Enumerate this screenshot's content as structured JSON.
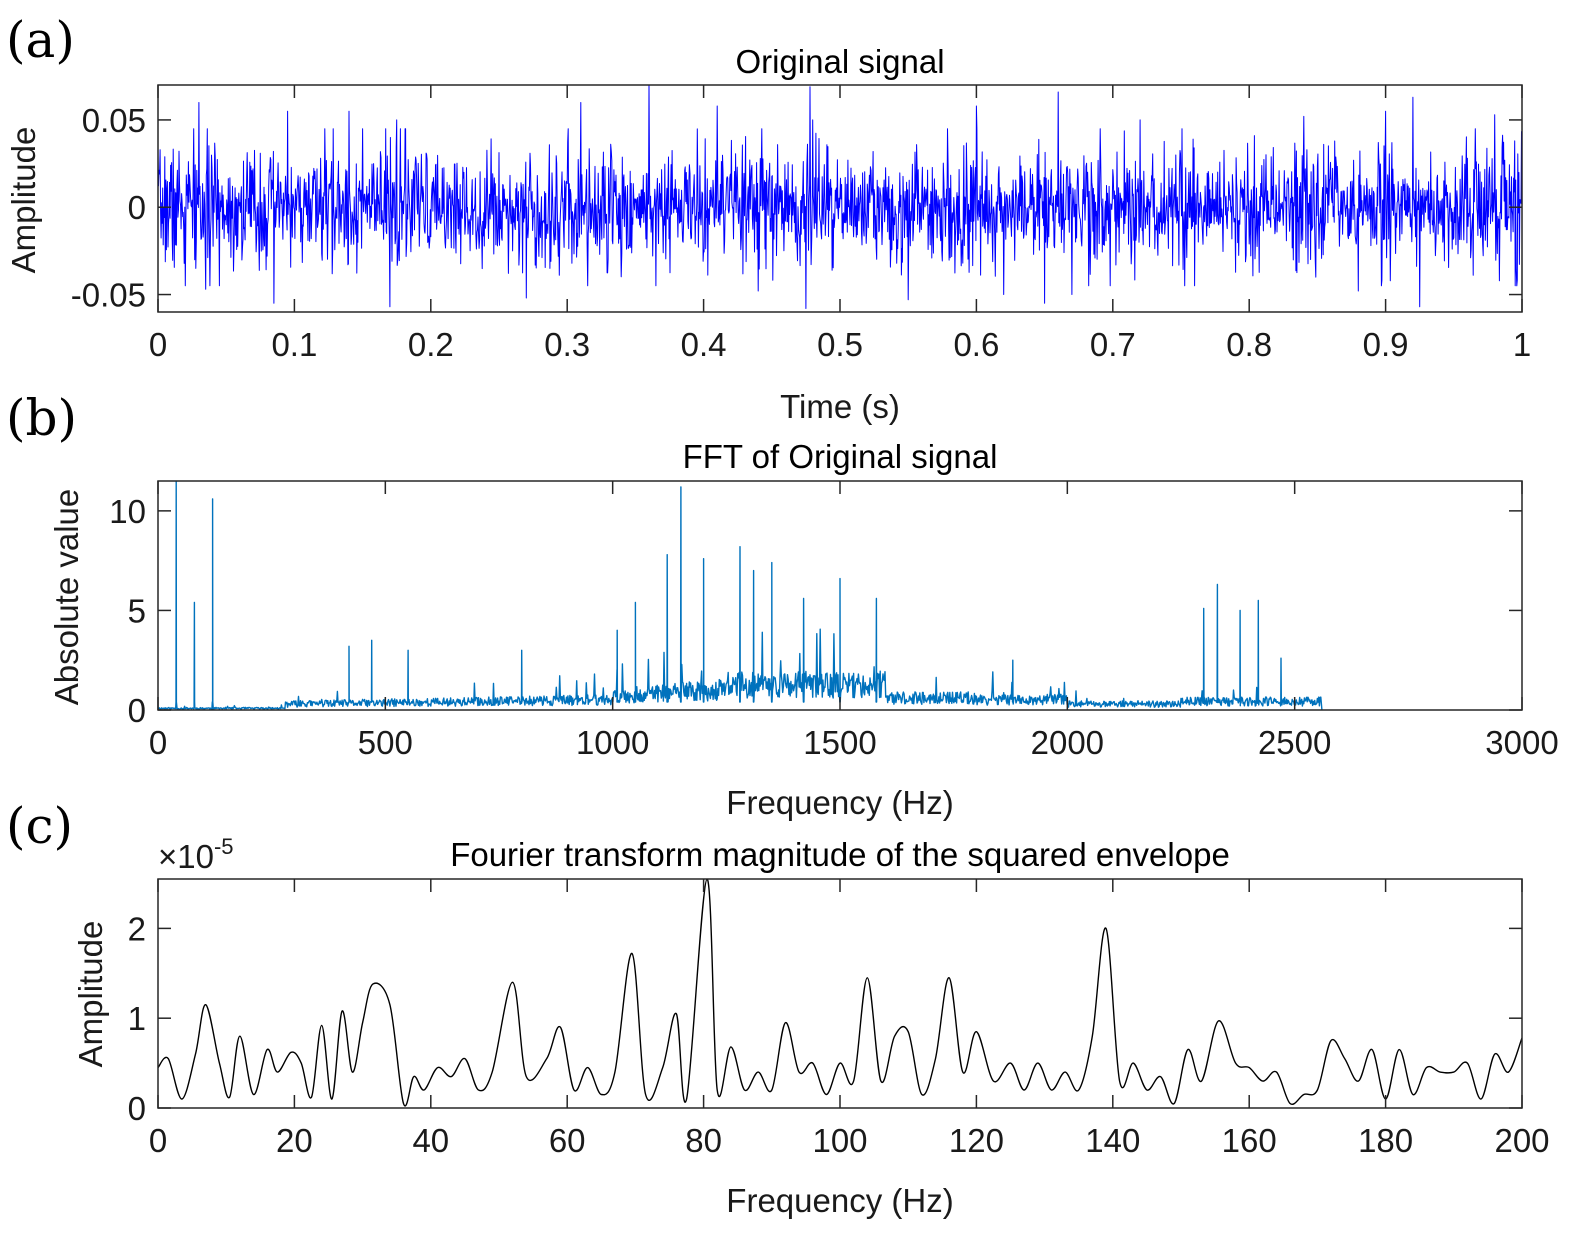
{
  "chart_data": [
    {
      "panel_label": "(a)",
      "type": "line",
      "title": "Original signal",
      "xlabel": "Time (s)",
      "ylabel": "Amplitude",
      "xlim": [
        0,
        1
      ],
      "ylim": [
        -0.06,
        0.07
      ],
      "xticks": [
        0,
        0.1,
        0.2,
        0.3,
        0.4,
        0.5,
        0.6,
        0.7,
        0.8,
        0.9,
        1
      ],
      "xtick_labels": [
        "0",
        "0.1",
        "0.2",
        "0.3",
        "0.4",
        "0.5",
        "0.6",
        "0.7",
        "0.8",
        "0.9",
        "1"
      ],
      "yticks": [
        -0.05,
        0,
        0.05
      ],
      "ytick_labels": [
        "-0.05",
        "0",
        "0.05"
      ],
      "grid": false,
      "series": [
        {
          "color": "#0000ff",
          "description_values": "dense vibration signal, roughly +/-0.03 envelope",
          "points": [
            [
              0.0,
              0.03
            ],
            [
              0.02,
              -0.045
            ],
            [
              0.03,
              0.06
            ],
            [
              0.035,
              -0.047
            ],
            [
              0.085,
              -0.055
            ],
            [
              0.095,
              0.055
            ],
            [
              0.14,
              0.055
            ],
            [
              0.17,
              -0.057
            ],
            [
              0.175,
              0.05
            ],
            [
              0.27,
              -0.052
            ],
            [
              0.31,
              0.06
            ],
            [
              0.315,
              -0.045
            ],
            [
              0.36,
              0.072
            ],
            [
              0.365,
              -0.045
            ],
            [
              0.41,
              0.058
            ],
            [
              0.44,
              -0.048
            ],
            [
              0.475,
              -0.058
            ],
            [
              0.478,
              0.069
            ],
            [
              0.48,
              0.05
            ],
            [
              0.55,
              -0.053
            ],
            [
              0.6,
              0.058
            ],
            [
              0.62,
              -0.05
            ],
            [
              0.65,
              -0.055
            ],
            [
              0.66,
              0.066
            ],
            [
              0.67,
              -0.05
            ],
            [
              0.72,
              0.05
            ],
            [
              0.76,
              -0.045
            ],
            [
              0.84,
              0.052
            ],
            [
              0.88,
              -0.048
            ],
            [
              0.9,
              0.055
            ],
            [
              0.92,
              0.063
            ],
            [
              0.925,
              -0.057
            ],
            [
              0.98,
              0.053
            ],
            [
              0.995,
              -0.045
            ],
            [
              1.0,
              0.02
            ]
          ]
        }
      ]
    },
    {
      "panel_label": "(b)",
      "type": "line",
      "title": "FFT of Original signal",
      "xlabel": "Frequency (Hz)",
      "ylabel": "Absolute value",
      "xlim": [
        0,
        3000
      ],
      "ylim": [
        0,
        11.5
      ],
      "xticks": [
        0,
        500,
        1000,
        1500,
        2000,
        2500,
        3000
      ],
      "xtick_labels": [
        "0",
        "500",
        "1000",
        "1500",
        "2000",
        "2500",
        "3000"
      ],
      "yticks": [
        0,
        5,
        10
      ],
      "ytick_labels": [
        "0",
        "5",
        "10"
      ],
      "grid": false,
      "series": [
        {
          "color": "#0072bd",
          "peaks": [
            [
              40,
              11.5
            ],
            [
              80,
              5.4
            ],
            [
              120,
              10.6
            ],
            [
              420,
              3.2
            ],
            [
              470,
              3.5
            ],
            [
              550,
              3.0
            ],
            [
              800,
              3.0
            ],
            [
              1010,
              4.0
            ],
            [
              1050,
              5.4
            ],
            [
              1120,
              7.8
            ],
            [
              1150,
              11.2
            ],
            [
              1200,
              7.6
            ],
            [
              1280,
              8.2
            ],
            [
              1310,
              7.0
            ],
            [
              1350,
              7.4
            ],
            [
              1420,
              5.6
            ],
            [
              1500,
              6.6
            ],
            [
              1580,
              5.6
            ],
            [
              1880,
              2.5
            ],
            [
              2300,
              5.1
            ],
            [
              2330,
              6.3
            ],
            [
              2380,
              5.0
            ],
            [
              2420,
              5.5
            ],
            [
              2470,
              2.6
            ]
          ],
          "max_frequency": 2560
        }
      ]
    },
    {
      "panel_label": "(c)",
      "type": "line",
      "title": "Fourier transform magnitude of the squared envelope",
      "xlabel": "Frequency (Hz)",
      "ylabel": "Amplitude",
      "y_multiplier_base": "×10",
      "y_multiplier_exp": "-5",
      "xlim": [
        0,
        200
      ],
      "ylim": [
        0,
        2.55
      ],
      "xticks": [
        0,
        20,
        40,
        60,
        80,
        100,
        120,
        140,
        160,
        180,
        200
      ],
      "xtick_labels": [
        "0",
        "20",
        "40",
        "60",
        "80",
        "100",
        "120",
        "140",
        "160",
        "180",
        "200"
      ],
      "yticks": [
        0,
        1,
        2
      ],
      "ytick_labels": [
        "0",
        "1",
        "2"
      ],
      "grid": false,
      "series": [
        {
          "color": "#000000",
          "x": [
            0,
            1.5,
            3.5,
            5.5,
            7,
            9,
            10.5,
            12,
            14,
            16,
            17.5,
            19.5,
            21,
            22.5,
            24,
            25.5,
            27,
            28.5,
            30,
            31.5,
            34,
            36,
            37.5,
            39,
            41,
            43,
            45,
            47,
            49,
            52,
            54,
            57,
            59,
            61,
            63,
            65,
            67,
            69.5,
            71.5,
            74,
            76,
            77.5,
            80.5,
            82,
            84,
            86,
            88,
            90,
            92,
            94,
            96,
            98,
            100,
            102,
            104,
            106,
            108,
            110,
            112,
            114,
            116,
            118,
            120,
            122.5,
            125,
            127,
            129,
            131,
            133,
            135,
            137,
            139,
            141,
            143,
            145,
            147,
            149,
            151,
            153,
            155.5,
            158,
            160,
            162,
            164,
            166,
            168,
            170,
            172,
            174,
            176,
            178,
            180,
            182,
            184,
            186,
            188,
            190,
            192,
            194,
            196,
            198,
            200
          ],
          "y": [
            0.45,
            0.55,
            0.1,
            0.6,
            1.15,
            0.5,
            0.12,
            0.8,
            0.15,
            0.65,
            0.4,
            0.62,
            0.5,
            0.12,
            0.92,
            0.1,
            1.08,
            0.4,
            0.95,
            1.38,
            1.15,
            0.05,
            0.35,
            0.2,
            0.45,
            0.35,
            0.55,
            0.2,
            0.4,
            1.4,
            0.35,
            0.55,
            0.9,
            0.2,
            0.45,
            0.15,
            0.4,
            1.72,
            0.15,
            0.45,
            1.05,
            0.1,
            2.55,
            0.2,
            0.68,
            0.2,
            0.4,
            0.2,
            0.95,
            0.4,
            0.5,
            0.15,
            0.5,
            0.3,
            1.45,
            0.3,
            0.8,
            0.85,
            0.15,
            0.55,
            1.45,
            0.4,
            0.85,
            0.3,
            0.5,
            0.2,
            0.5,
            0.2,
            0.4,
            0.2,
            0.8,
            2.0,
            0.3,
            0.5,
            0.2,
            0.35,
            0.05,
            0.65,
            0.3,
            0.97,
            0.5,
            0.45,
            0.3,
            0.4,
            0.05,
            0.15,
            0.2,
            0.75,
            0.55,
            0.3,
            0.65,
            0.1,
            0.65,
            0.15,
            0.45,
            0.4,
            0.4,
            0.5,
            0.1,
            0.6,
            0.4,
            0.78
          ]
        }
      ]
    }
  ]
}
